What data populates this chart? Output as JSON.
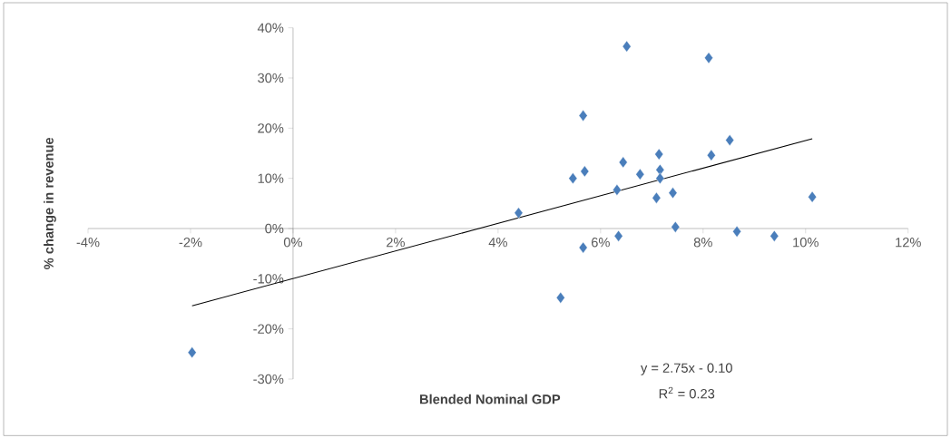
{
  "chart_data": {
    "type": "scatter",
    "xlabel": "Blended Nominal GDP",
    "ylabel": "% change in revenue",
    "annotations": [
      "y = 2.75x - 0.10",
      "R$^{2}$ = 0.23"
    ],
    "xlim": [
      -4,
      12
    ],
    "ylim": [
      -30,
      40
    ],
    "xticks": [
      {
        "value": -4,
        "label": "-4%"
      },
      {
        "value": -2,
        "label": "-2%"
      },
      {
        "value": 0,
        "label": "0%"
      },
      {
        "value": 2,
        "label": "2%"
      },
      {
        "value": 4,
        "label": "4%"
      },
      {
        "value": 6,
        "label": "6%"
      },
      {
        "value": 8,
        "label": "8%"
      },
      {
        "value": 10,
        "label": "10%"
      },
      {
        "value": 12,
        "label": "12%"
      }
    ],
    "yticks": [
      {
        "value": -30,
        "label": "-30%"
      },
      {
        "value": -20,
        "label": "-20%"
      },
      {
        "value": -10,
        "label": "-10%"
      },
      {
        "value": 0,
        "label": "0%"
      },
      {
        "value": 10,
        "label": "10%"
      },
      {
        "value": 20,
        "label": "20%"
      },
      {
        "value": 30,
        "label": "30%"
      },
      {
        "value": 40,
        "label": "40%"
      }
    ],
    "marker": "diamond",
    "grid": false,
    "series": [
      {
        "color": "#4a7ebb",
        "x": [
          6.51,
          8.11,
          5.66,
          8.52,
          7.14,
          8.16,
          6.44,
          5.69,
          7.16,
          5.46,
          6.77,
          7.16,
          6.32,
          7.41,
          7.09,
          10.13,
          7.46,
          8.66,
          9.39,
          6.35,
          5.66,
          5.22,
          4.4,
          -1.97
        ],
        "values": [
          36.3,
          34.0,
          22.5,
          17.6,
          14.8,
          14.6,
          13.2,
          11.4,
          11.7,
          10.0,
          10.8,
          10.0,
          7.7,
          7.1,
          6.1,
          6.3,
          0.3,
          -0.6,
          -1.5,
          -1.5,
          -3.8,
          -13.8,
          3.1,
          -24.7
        ]
      },
      {
        "type": "line",
        "color": "#000000",
        "marker": "none",
        "x": [
          -1.97,
          10.13
        ],
        "values": [
          -15.4,
          17.9
        ]
      }
    ]
  }
}
